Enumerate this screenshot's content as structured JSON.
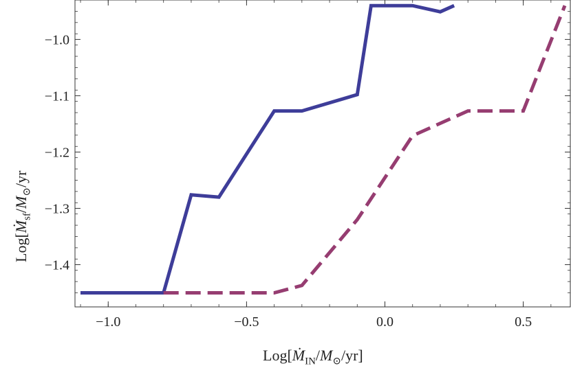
{
  "chart_data": {
    "type": "line",
    "xlabel": "Log[Ṁ_IN/M_⊙/yr]",
    "ylabel": "Log[Ṁ_sf/M_⊙/yr",
    "xlim": [
      -1.12,
      0.67
    ],
    "ylim": [
      -1.475,
      -0.93
    ],
    "x_ticks": [
      -1.0,
      -0.5,
      0.0,
      0.5
    ],
    "x_tick_labels": [
      "−1.0",
      "−0.5",
      "0.0",
      "0.5"
    ],
    "y_ticks": [
      -1.4,
      -1.3,
      -1.2,
      -1.1,
      -1.0
    ],
    "y_tick_labels": [
      "−1.4",
      "−1.3",
      "−1.2",
      "−1.1",
      "−1.0"
    ],
    "grid": false,
    "series": [
      {
        "style": "solid",
        "color": "#3e3d99",
        "points": [
          [
            -1.1,
            -1.45
          ],
          [
            -0.8,
            -1.45
          ],
          [
            -0.7,
            -1.276
          ],
          [
            -0.6,
            -1.28
          ],
          [
            -0.4,
            -1.127
          ],
          [
            -0.3,
            -1.127
          ],
          [
            -0.1,
            -1.098
          ],
          [
            -0.05,
            -0.94
          ],
          [
            0.1,
            -0.94
          ],
          [
            0.2,
            -0.951
          ],
          [
            0.25,
            -0.94
          ]
        ]
      },
      {
        "style": "dashed",
        "color": "#963d71",
        "points": [
          [
            -0.8,
            -1.45
          ],
          [
            -0.4,
            -1.45
          ],
          [
            -0.3,
            -1.437
          ],
          [
            -0.1,
            -1.32
          ],
          [
            0.1,
            -1.171
          ],
          [
            0.3,
            -1.127
          ],
          [
            0.5,
            -1.127
          ],
          [
            0.65,
            -0.94
          ]
        ]
      }
    ]
  }
}
